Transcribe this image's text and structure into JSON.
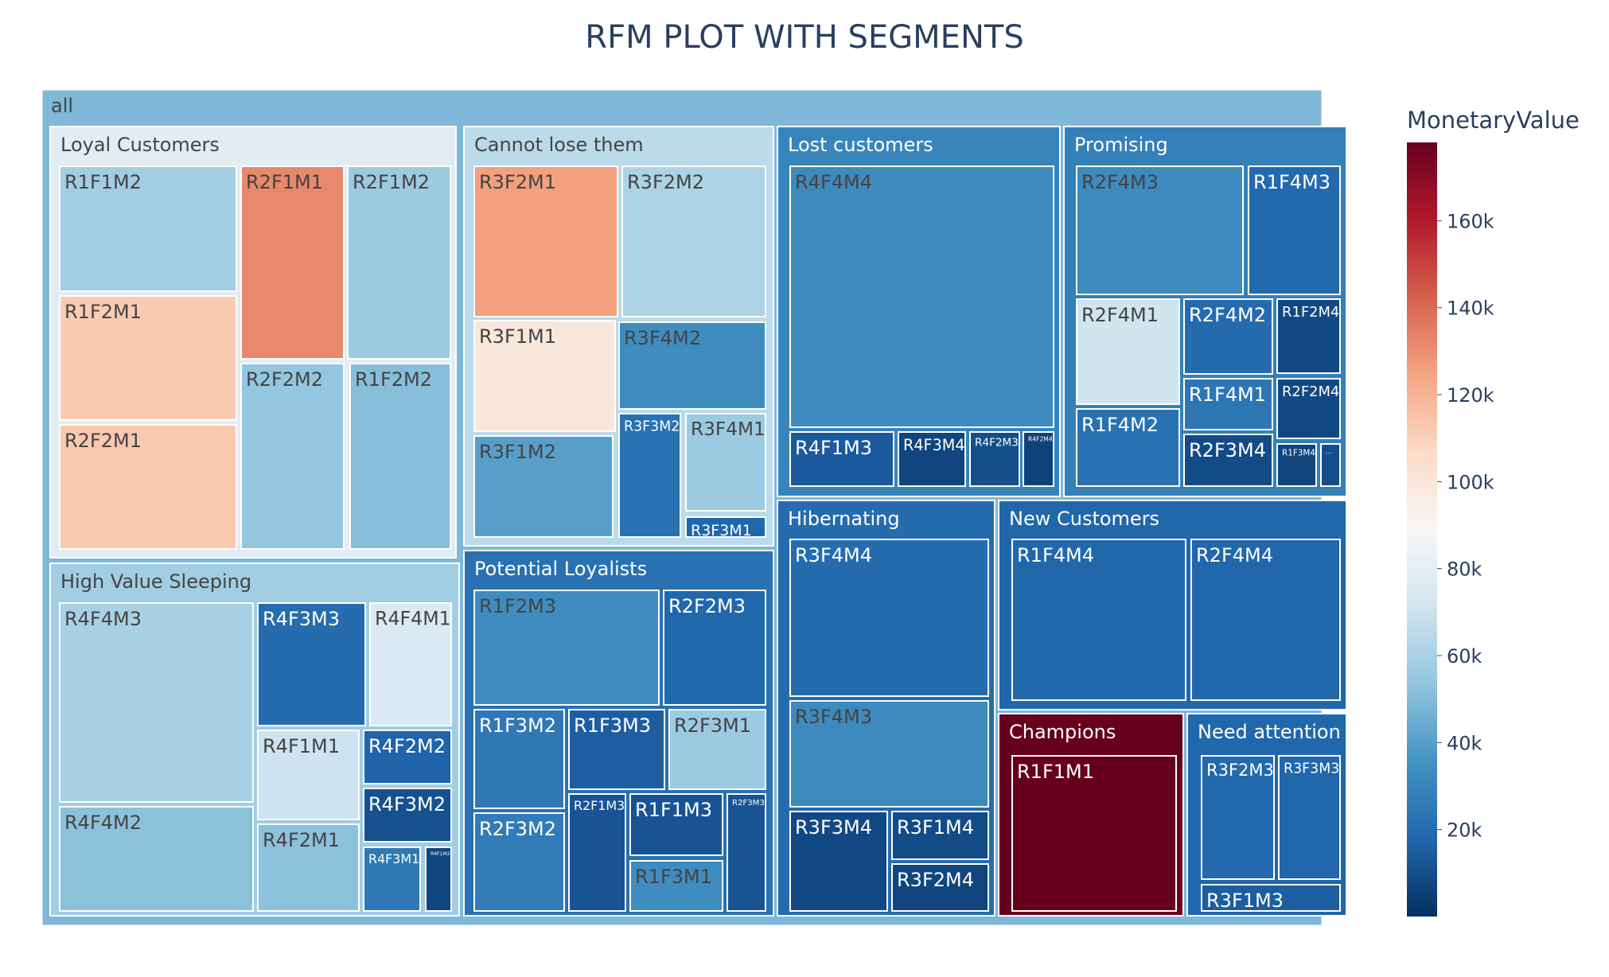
{
  "chart_data": {
    "type": "treemap",
    "title": "RFM PLOT WITH SEGMENTS",
    "root_label": "all",
    "colorbar": {
      "title": "MonetaryValue",
      "range": [
        0,
        178000
      ],
      "ticks": [
        20000,
        40000,
        60000,
        80000,
        100000,
        120000,
        140000,
        160000
      ],
      "tick_labels": [
        "20k",
        "40k",
        "60k",
        "80k",
        "100k",
        "120k",
        "140k",
        "160k"
      ],
      "colorscale": [
        "#053061",
        "#2166ac",
        "#4393c3",
        "#92c5de",
        "#d1e5f0",
        "#f7f7f7",
        "#fddbc7",
        "#f4a582",
        "#d6604d",
        "#b2182b",
        "#67001f"
      ]
    },
    "segments": [
      {
        "name": "Loyal Customers",
        "monetary": 79000,
        "children": [
          {
            "label": "R1F1M2",
            "monetary": 58000
          },
          {
            "label": "R1F2M1",
            "monetary": 112000
          },
          {
            "label": "R2F2M1",
            "monetary": 113000
          },
          {
            "label": "R2F1M1",
            "monetary": 132000
          },
          {
            "label": "R2F1M2",
            "monetary": 56000
          },
          {
            "label": "R2F2M2",
            "monetary": 54000
          },
          {
            "label": "R1F2M2",
            "monetary": 51000
          }
        ]
      },
      {
        "name": "Cannot lose them",
        "monetary": 65000,
        "children": [
          {
            "label": "R3F2M1",
            "monetary": 126000
          },
          {
            "label": "R3F2M2",
            "monetary": 61000
          },
          {
            "label": "R3F1M1",
            "monetary": 99000
          },
          {
            "label": "R3F4M2",
            "monetary": 33000
          },
          {
            "label": "R3F1M2",
            "monetary": 40000
          },
          {
            "label": "R3F3M2",
            "monetary": 22000
          },
          {
            "label": "R3F4M1",
            "monetary": 56000
          },
          {
            "label": "R3F3M1",
            "monetary": 18000
          }
        ]
      },
      {
        "name": "Lost customers",
        "monetary": 30000,
        "children": [
          {
            "label": "R4F4M4",
            "monetary": 32000
          },
          {
            "label": "R4F1M3",
            "monetary": 14000
          },
          {
            "label": "R4F3M4",
            "monetary": 7000
          },
          {
            "label": "R4F2M3",
            "monetary": 10000
          },
          {
            "label": "R4F2M4",
            "monetary": 6000
          }
        ]
      },
      {
        "name": "Promising",
        "monetary": 28000,
        "children": [
          {
            "label": "R2F4M3",
            "monetary": 32000
          },
          {
            "label": "R1F4M3",
            "monetary": 19000
          },
          {
            "label": "R2F4M1",
            "monetary": 71000
          },
          {
            "label": "R2F4M2",
            "monetary": 20000
          },
          {
            "label": "R1F2M4",
            "monetary": 8000
          },
          {
            "label": "R1F4M1",
            "monetary": 24000
          },
          {
            "label": "R2F2M4",
            "monetary": 8000
          },
          {
            "label": "R1F4M2",
            "monetary": 22000
          },
          {
            "label": "R2F3M4",
            "monetary": 9000
          },
          {
            "label": "R1F3M4",
            "monetary": 7000
          },
          {
            "label": "...",
            "monetary": 10000
          }
        ]
      },
      {
        "name": "High Value Sleeping",
        "monetary": 58000,
        "children": [
          {
            "label": "R4F4M3",
            "monetary": 60000
          },
          {
            "label": "R4F4M2",
            "monetary": 52000
          },
          {
            "label": "R4F3M3",
            "monetary": 20000
          },
          {
            "label": "R4F4M1",
            "monetary": 76000
          },
          {
            "label": "R4F1M1",
            "monetary": 70000
          },
          {
            "label": "R4F2M1",
            "monetary": 52000
          },
          {
            "label": "R4F2M2",
            "monetary": 17000
          },
          {
            "label": "R4F3M2",
            "monetary": 11000
          },
          {
            "label": "R4F3M1",
            "monetary": 25000
          },
          {
            "label": "R4F1M2",
            "monetary": 7000
          }
        ]
      },
      {
        "name": "Potential Loyalists",
        "monetary": 22000,
        "children": [
          {
            "label": "R1F2M3",
            "monetary": 33000
          },
          {
            "label": "R2F2M3",
            "monetary": 18000
          },
          {
            "label": "R1F3M2",
            "monetary": 25000
          },
          {
            "label": "R1F3M3",
            "monetary": 15000
          },
          {
            "label": "R2F3M1",
            "monetary": 56000
          },
          {
            "label": "R2F3M2",
            "monetary": 26000
          },
          {
            "label": "R2F1M3",
            "monetary": 12000
          },
          {
            "label": "R1F1M3",
            "monetary": 12000
          },
          {
            "label": "R1F3M1",
            "monetary": 33000
          },
          {
            "label": "R2F3M3",
            "monetary": 12000
          }
        ]
      },
      {
        "name": "Hibernating",
        "monetary": 20000,
        "children": [
          {
            "label": "R3F4M4",
            "monetary": 20000
          },
          {
            "label": "R3F4M3",
            "monetary": 32000
          },
          {
            "label": "R3F3M4",
            "monetary": 8000
          },
          {
            "label": "R3F1M4",
            "monetary": 9000
          },
          {
            "label": "R3F2M4",
            "monetary": 7000
          }
        ]
      },
      {
        "name": "New Customers",
        "monetary": 18000,
        "children": [
          {
            "label": "R1F4M4",
            "monetary": 18000
          },
          {
            "label": "R2F4M4",
            "monetary": 18000
          }
        ]
      },
      {
        "name": "Champions",
        "monetary": 178000,
        "children": [
          {
            "label": "R1F1M1",
            "monetary": 178000
          }
        ]
      },
      {
        "name": "Need attention",
        "monetary": 18000,
        "children": [
          {
            "label": "R3F2M3",
            "monetary": 19000
          },
          {
            "label": "R3F3M3",
            "monetary": 18000
          },
          {
            "label": "R3F1M3",
            "monetary": 15000
          }
        ]
      }
    ]
  }
}
